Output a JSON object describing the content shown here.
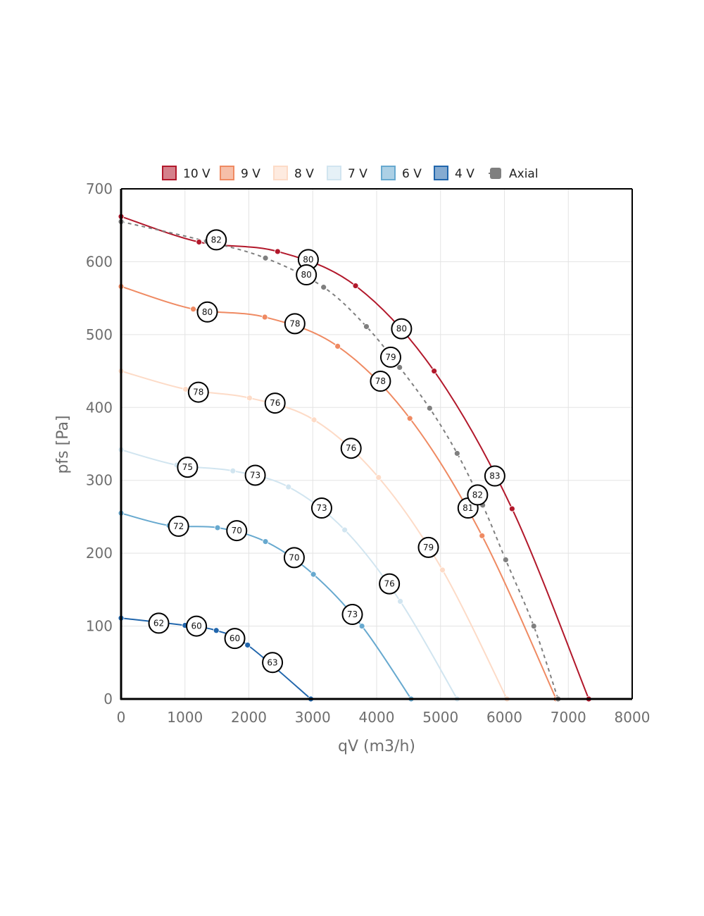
{
  "chart_data": {
    "type": "line",
    "title": "",
    "xlabel": "qV (m3/h)",
    "ylabel": "pfs [Pa]",
    "xlim": [
      0,
      8000
    ],
    "ylim": [
      0,
      700
    ],
    "xticks": [
      0,
      1000,
      2000,
      3000,
      4000,
      5000,
      6000,
      7000,
      8000
    ],
    "yticks": [
      0,
      100,
      200,
      300,
      400,
      500,
      600,
      700
    ],
    "grid": true,
    "legend_position": "top",
    "series": [
      {
        "name": "10 V",
        "color": "#b2182b",
        "dashed": false,
        "points": [
          [
            0,
            662
          ],
          [
            1220,
            627
          ],
          [
            2450,
            614
          ],
          [
            3670,
            567
          ],
          [
            4900,
            450
          ],
          [
            6120,
            261
          ],
          [
            7320,
            0
          ]
        ],
        "labels": [
          {
            "x": 1490,
            "y": 630,
            "text": "82"
          },
          {
            "x": 2930,
            "y": 603,
            "text": "80"
          },
          {
            "x": 4390,
            "y": 508,
            "text": "80"
          },
          {
            "x": 5850,
            "y": 306,
            "text": "83"
          }
        ]
      },
      {
        "name": "9 V",
        "color": "#ef8a62",
        "dashed": false,
        "points": [
          [
            0,
            566
          ],
          [
            1130,
            535
          ],
          [
            2250,
            524
          ],
          [
            3390,
            484
          ],
          [
            4520,
            385
          ],
          [
            5650,
            224
          ],
          [
            6810,
            0
          ]
        ],
        "labels": [
          {
            "x": 1350,
            "y": 531,
            "text": "80"
          },
          {
            "x": 2720,
            "y": 515,
            "text": "78"
          },
          {
            "x": 4060,
            "y": 436,
            "text": "78"
          },
          {
            "x": 5430,
            "y": 262,
            "text": "81"
          }
        ]
      },
      {
        "name": "8 V",
        "color": "#fddbc7",
        "dashed": false,
        "points": [
          [
            0,
            450
          ],
          [
            1010,
            425
          ],
          [
            2010,
            413
          ],
          [
            3020,
            383
          ],
          [
            4030,
            304
          ],
          [
            5030,
            177
          ],
          [
            6040,
            0
          ]
        ],
        "labels": [
          {
            "x": 1210,
            "y": 421,
            "text": "78"
          },
          {
            "x": 2410,
            "y": 406,
            "text": "76"
          },
          {
            "x": 3600,
            "y": 344,
            "text": "76"
          },
          {
            "x": 4810,
            "y": 208,
            "text": "79"
          }
        ]
      },
      {
        "name": "7 V",
        "color": "#d1e5f0",
        "dashed": false,
        "points": [
          [
            0,
            342
          ],
          [
            870,
            321
          ],
          [
            1750,
            313
          ],
          [
            2620,
            291
          ],
          [
            3500,
            232
          ],
          [
            4370,
            134
          ],
          [
            5260,
            0
          ]
        ],
        "labels": [
          {
            "x": 1040,
            "y": 318,
            "text": "75"
          },
          {
            "x": 2100,
            "y": 307,
            "text": "73"
          },
          {
            "x": 3140,
            "y": 262,
            "text": "73"
          },
          {
            "x": 4200,
            "y": 158,
            "text": "76"
          }
        ]
      },
      {
        "name": "6 V",
        "color": "#67a9cf",
        "dashed": false,
        "points": [
          [
            0,
            255
          ],
          [
            750,
            238
          ],
          [
            1510,
            235
          ],
          [
            2260,
            216
          ],
          [
            3010,
            171
          ],
          [
            3770,
            100
          ],
          [
            4540,
            0
          ]
        ],
        "labels": [
          {
            "x": 900,
            "y": 237,
            "text": "72"
          },
          {
            "x": 1810,
            "y": 231,
            "text": "70"
          },
          {
            "x": 2710,
            "y": 194,
            "text": "70"
          },
          {
            "x": 3620,
            "y": 116,
            "text": "73"
          }
        ]
      },
      {
        "name": "4 V",
        "color": "#2166ac",
        "dashed": false,
        "points": [
          [
            0,
            111
          ],
          [
            1000,
            101
          ],
          [
            1490,
            94
          ],
          [
            1980,
            74
          ],
          [
            2970,
            0
          ]
        ],
        "labels": [
          {
            "x": 590,
            "y": 104,
            "text": "62"
          },
          {
            "x": 1180,
            "y": 100,
            "text": "60"
          },
          {
            "x": 1780,
            "y": 83,
            "text": "60"
          },
          {
            "x": 2370,
            "y": 50,
            "text": "63"
          }
        ]
      },
      {
        "name": "Axial",
        "color": "#7f7f7f",
        "dashed": true,
        "points": [
          [
            0,
            655
          ],
          [
            1340,
            628
          ],
          [
            2260,
            605
          ],
          [
            3170,
            565
          ],
          [
            3840,
            511
          ],
          [
            4360,
            455
          ],
          [
            4830,
            399
          ],
          [
            5260,
            337
          ],
          [
            5660,
            266
          ],
          [
            6020,
            191
          ],
          [
            6460,
            100
          ],
          [
            6840,
            0
          ]
        ],
        "labels": [
          {
            "x": 2900,
            "y": 582,
            "text": "80"
          },
          {
            "x": 4220,
            "y": 469,
            "text": "79"
          },
          {
            "x": 5580,
            "y": 280,
            "text": "82"
          }
        ]
      }
    ]
  }
}
